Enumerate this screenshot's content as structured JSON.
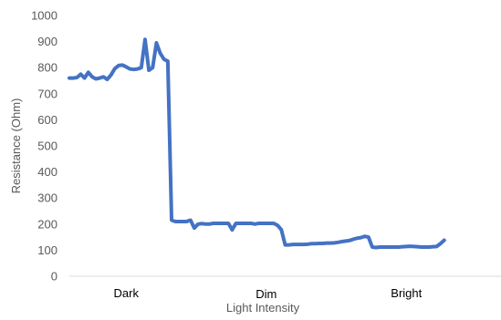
{
  "chart_data": {
    "type": "line",
    "title": "",
    "xlabel": "Light Intensity",
    "ylabel": "Resistance (Ohm)",
    "ylim": [
      0,
      1000
    ],
    "yticks": [
      0,
      100,
      200,
      300,
      400,
      500,
      600,
      700,
      800,
      900,
      1000
    ],
    "grid": false,
    "legend": "none",
    "line_color": "#4472C4",
    "categories": [
      {
        "label": "Dark",
        "x": 16
      },
      {
        "label": "Dim",
        "x": 53
      },
      {
        "label": "Bright",
        "x": 90
      }
    ],
    "x_range": [
      1,
      115
    ],
    "series": [
      {
        "values": [
          [
            1,
            760
          ],
          [
            2,
            760
          ],
          [
            3,
            762
          ],
          [
            4,
            775
          ],
          [
            5,
            760
          ],
          [
            6,
            782
          ],
          [
            7,
            765
          ],
          [
            8,
            757
          ],
          [
            9,
            760
          ],
          [
            10,
            765
          ],
          [
            11,
            755
          ],
          [
            12,
            772
          ],
          [
            13,
            796
          ],
          [
            14,
            808
          ],
          [
            15,
            810
          ],
          [
            16,
            803
          ],
          [
            17,
            795
          ],
          [
            18,
            793
          ],
          [
            19,
            795
          ],
          [
            20,
            800
          ],
          [
            21,
            908
          ],
          [
            22,
            790
          ],
          [
            23,
            800
          ],
          [
            24,
            895
          ],
          [
            25,
            855
          ],
          [
            26,
            832
          ],
          [
            27,
            825
          ],
          [
            28,
            215
          ],
          [
            29,
            210
          ],
          [
            30,
            210
          ],
          [
            31,
            210
          ],
          [
            32,
            210
          ],
          [
            33,
            215
          ],
          [
            34,
            185
          ],
          [
            35,
            200
          ],
          [
            36,
            202
          ],
          [
            37,
            200
          ],
          [
            38,
            200
          ],
          [
            39,
            203
          ],
          [
            40,
            203
          ],
          [
            41,
            203
          ],
          [
            42,
            203
          ],
          [
            43,
            203
          ],
          [
            44,
            178
          ],
          [
            45,
            203
          ],
          [
            46,
            203
          ],
          [
            47,
            203
          ],
          [
            48,
            203
          ],
          [
            49,
            203
          ],
          [
            50,
            200
          ],
          [
            51,
            203
          ],
          [
            52,
            203
          ],
          [
            53,
            203
          ],
          [
            54,
            203
          ],
          [
            55,
            203
          ],
          [
            56,
            195
          ],
          [
            57,
            178
          ],
          [
            58,
            120
          ],
          [
            59,
            120
          ],
          [
            60,
            122
          ],
          [
            61,
            122
          ],
          [
            62,
            122
          ],
          [
            63,
            122
          ],
          [
            64,
            123
          ],
          [
            65,
            125
          ],
          [
            66,
            125
          ],
          [
            67,
            126
          ],
          [
            68,
            126
          ],
          [
            69,
            127
          ],
          [
            70,
            127
          ],
          [
            71,
            128
          ],
          [
            72,
            130
          ],
          [
            73,
            133
          ],
          [
            74,
            135
          ],
          [
            75,
            137
          ],
          [
            76,
            142
          ],
          [
            77,
            146
          ],
          [
            78,
            148
          ],
          [
            79,
            153
          ],
          [
            80,
            150
          ],
          [
            81,
            112
          ],
          [
            82,
            110
          ],
          [
            83,
            112
          ],
          [
            84,
            112
          ],
          [
            85,
            112
          ],
          [
            86,
            112
          ],
          [
            87,
            112
          ],
          [
            88,
            112
          ],
          [
            89,
            113
          ],
          [
            90,
            114
          ],
          [
            91,
            115
          ],
          [
            92,
            114
          ],
          [
            93,
            113
          ],
          [
            94,
            112
          ],
          [
            95,
            112
          ],
          [
            96,
            112
          ],
          [
            97,
            113
          ],
          [
            98,
            114
          ],
          [
            99,
            125
          ],
          [
            100,
            138
          ]
        ]
      }
    ]
  }
}
